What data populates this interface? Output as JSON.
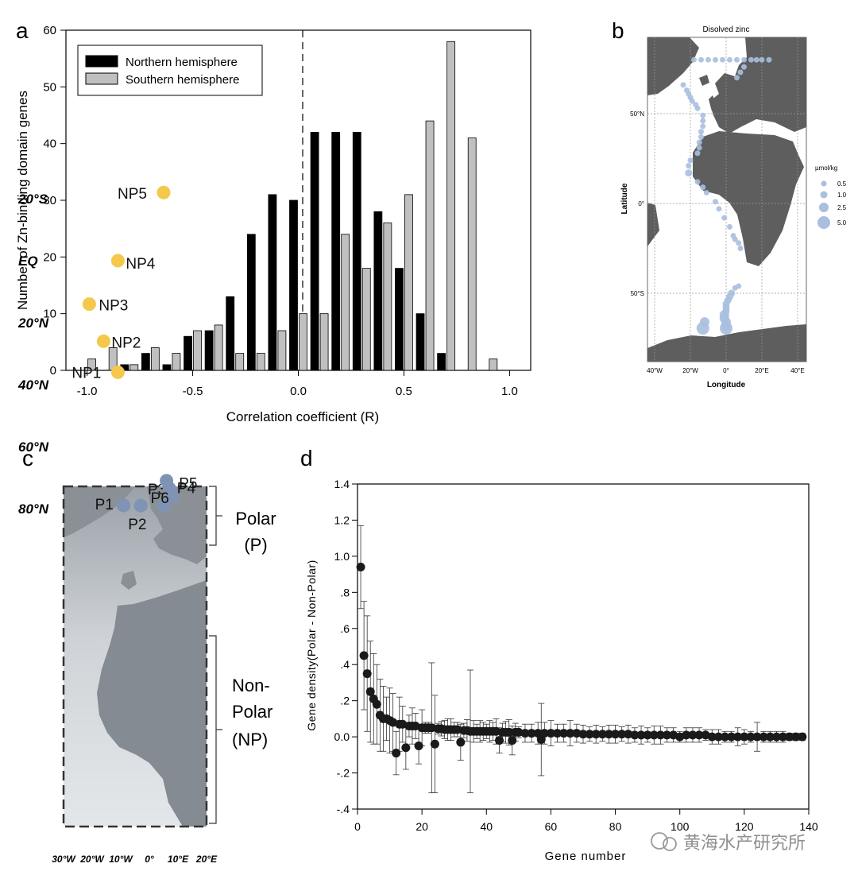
{
  "panel_labels": {
    "a": "a",
    "b": "b",
    "c": "c",
    "d": "d"
  },
  "watermark": "黄海水产研究所",
  "chart_data": [
    {
      "panel": "a",
      "type": "bar",
      "xlabel": "Correlation coefficient (R)",
      "ylabel": "Number of Zn-binding domain genes",
      "xlim": [
        -1.1,
        1.1
      ],
      "ylim": [
        0,
        60
      ],
      "xticks": [
        "-1.0",
        "-0.5",
        "0.0",
        "0.5",
        "1.0"
      ],
      "yticks": [
        "0",
        "10",
        "20",
        "30",
        "40",
        "50",
        "60"
      ],
      "legend_position": "top-left",
      "x": [
        -1.0,
        -0.9,
        -0.8,
        -0.7,
        -0.6,
        -0.5,
        -0.4,
        -0.3,
        -0.2,
        -0.1,
        0.0,
        0.1,
        0.2,
        0.3,
        0.4,
        0.5,
        0.6,
        0.7,
        0.8,
        0.9
      ],
      "series": [
        {
          "name": "Northern hemisphere",
          "color": "#000000",
          "values": [
            0,
            0,
            1,
            3,
            1,
            6,
            7,
            13,
            24,
            31,
            30,
            42,
            42,
            42,
            28,
            18,
            10,
            3,
            0,
            0
          ]
        },
        {
          "name": "Southern hemisphere",
          "color": "#c0c0c0",
          "values": [
            2,
            4,
            1,
            4,
            3,
            7,
            8,
            3,
            3,
            7,
            10,
            10,
            24,
            18,
            26,
            31,
            44,
            58,
            41,
            2
          ]
        }
      ]
    },
    {
      "panel": "b",
      "type": "scatter",
      "title": "Disolved zinc",
      "xlabel": "Longitude",
      "ylabel": "Latitude",
      "xticks": [
        "40°W",
        "20°W",
        "0°",
        "20°E",
        "40°E"
      ],
      "yticks": [
        "50°N",
        "0°",
        "50°S"
      ],
      "legend_title": "µmol/kg",
      "legend_sizes": [
        "0.5",
        "1.0",
        "2.5",
        "5.0"
      ],
      "point_color": "#a9bfdf",
      "points": [
        {
          "lon": -18,
          "lat": 80,
          "v": 0.5
        },
        {
          "lon": -14,
          "lat": 80,
          "v": 0.5
        },
        {
          "lon": -10,
          "lat": 80,
          "v": 0.5
        },
        {
          "lon": -6,
          "lat": 80,
          "v": 0.5
        },
        {
          "lon": -2,
          "lat": 80,
          "v": 0.5
        },
        {
          "lon": 2,
          "lat": 80,
          "v": 0.5
        },
        {
          "lon": 6,
          "lat": 80,
          "v": 0.5
        },
        {
          "lon": 10,
          "lat": 80,
          "v": 0.5
        },
        {
          "lon": 14,
          "lat": 80,
          "v": 0.5
        },
        {
          "lon": 17,
          "lat": 80,
          "v": 0.5
        },
        {
          "lon": 20,
          "lat": 80,
          "v": 0.5
        },
        {
          "lon": 24,
          "lat": 80,
          "v": 0.5
        },
        {
          "lon": 10,
          "lat": 76,
          "v": 0.5
        },
        {
          "lon": 8,
          "lat": 73,
          "v": 0.5
        },
        {
          "lon": 6,
          "lat": 70,
          "v": 0.5
        },
        {
          "lon": -24,
          "lat": 66,
          "v": 0.5
        },
        {
          "lon": -22,
          "lat": 63,
          "v": 0.5
        },
        {
          "lon": -21,
          "lat": 61,
          "v": 0.5
        },
        {
          "lon": -20,
          "lat": 59,
          "v": 0.5
        },
        {
          "lon": -19,
          "lat": 57,
          "v": 0.5
        },
        {
          "lon": -17,
          "lat": 55,
          "v": 0.5
        },
        {
          "lon": -16,
          "lat": 53,
          "v": 0.5
        },
        {
          "lon": -13,
          "lat": 49,
          "v": 0.5
        },
        {
          "lon": -13,
          "lat": 46,
          "v": 0.5
        },
        {
          "lon": -13,
          "lat": 43,
          "v": 0.5
        },
        {
          "lon": -14,
          "lat": 40,
          "v": 0.5
        },
        {
          "lon": -14,
          "lat": 37,
          "v": 0.5
        },
        {
          "lon": -15,
          "lat": 34,
          "v": 0.5
        },
        {
          "lon": -15,
          "lat": 31,
          "v": 0.5
        },
        {
          "lon": -16,
          "lat": 28,
          "v": 0.5
        },
        {
          "lon": -20,
          "lat": 24,
          "v": 0.5
        },
        {
          "lon": -21,
          "lat": 21,
          "v": 0.5
        },
        {
          "lon": -21,
          "lat": 17,
          "v": 1.0
        },
        {
          "lon": -16,
          "lat": 12,
          "v": 0.5
        },
        {
          "lon": -13,
          "lat": 9,
          "v": 0.5
        },
        {
          "lon": -11,
          "lat": 6,
          "v": 0.5
        },
        {
          "lon": -6,
          "lat": 1,
          "v": 0.5
        },
        {
          "lon": -4,
          "lat": -3,
          "v": 0.5
        },
        {
          "lon": -1,
          "lat": -8,
          "v": 0.5
        },
        {
          "lon": 2,
          "lat": -13,
          "v": 0.5
        },
        {
          "lon": 4,
          "lat": -18,
          "v": 0.5
        },
        {
          "lon": 5,
          "lat": -20,
          "v": 0.5
        },
        {
          "lon": 7,
          "lat": -22,
          "v": 0.5
        },
        {
          "lon": 8,
          "lat": -25,
          "v": 0.5
        },
        {
          "lon": 7,
          "lat": -46,
          "v": 0.5
        },
        {
          "lon": 5,
          "lat": -47,
          "v": 0.5
        },
        {
          "lon": 3,
          "lat": -50,
          "v": 1.0
        },
        {
          "lon": 2,
          "lat": -52,
          "v": 1.0
        },
        {
          "lon": 1,
          "lat": -54,
          "v": 1.0
        },
        {
          "lon": 0,
          "lat": -56,
          "v": 1.0
        },
        {
          "lon": 0,
          "lat": -58,
          "v": 1.0
        },
        {
          "lon": 0,
          "lat": -60,
          "v": 1.0
        },
        {
          "lon": -1,
          "lat": -62,
          "v": 2.5
        },
        {
          "lon": -1,
          "lat": -64,
          "v": 2.5
        },
        {
          "lon": 0,
          "lat": -66,
          "v": 2.5
        },
        {
          "lon": 0,
          "lat": -68,
          "v": 2.5
        },
        {
          "lon": 0,
          "lat": -69.5,
          "v": 5.0
        },
        {
          "lon": -12,
          "lat": -66,
          "v": 2.5
        },
        {
          "lon": -13,
          "lat": -69.5,
          "v": 5.0
        }
      ]
    },
    {
      "panel": "c",
      "type": "scatter",
      "xticks": [
        "30°W",
        "20°W",
        "10°W",
        "0°",
        "10°E",
        "20°E"
      ],
      "yticks": [
        "80°N",
        "60°N",
        "40°N",
        "20°N",
        "EQ",
        "20°S"
      ],
      "groups": [
        {
          "name": "Polar",
          "abbr": "(P)",
          "color": "#7f93b4",
          "stations": [
            {
              "label": "P1",
              "lon": -9,
              "lat": 79
            },
            {
              "label": "P2",
              "lon": -3,
              "lat": 79
            },
            {
              "label": "P3",
              "lon": 5,
              "lat": 79
            },
            {
              "label": "P4",
              "lon": 8,
              "lat": 76
            },
            {
              "label": "P5",
              "lon": 7,
              "lat": 73.5
            },
            {
              "label": "P6",
              "lon": 6,
              "lat": 71
            }
          ]
        },
        {
          "name": "Non-",
          "name2": "Polar",
          "abbr": "(NP)",
          "color": "#f5c84c",
          "stations": [
            {
              "label": "NP1",
              "lon": -11,
              "lat": 36
            },
            {
              "label": "NP2",
              "lon": -16,
              "lat": 26
            },
            {
              "label": "NP3",
              "lon": -21,
              "lat": 14
            },
            {
              "label": "NP4",
              "lon": -11,
              "lat": 0
            },
            {
              "label": "NP5",
              "lon": 5,
              "lat": -22
            }
          ]
        }
      ]
    },
    {
      "panel": "d",
      "type": "scatter",
      "xlabel": "Gene number",
      "ylabel": "Gene density(Polar - Non-Polar)",
      "xlim": [
        0,
        140
      ],
      "ylim": [
        -0.4,
        1.4
      ],
      "xticks": [
        "0",
        "20",
        "40",
        "60",
        "80",
        "100",
        "120",
        "140"
      ],
      "yticks": [
        "-.4",
        "-.2",
        "0.0",
        ".2",
        ".4",
        ".6",
        ".8",
        "1.0",
        "1.2",
        "1.4"
      ],
      "series": [
        {
          "color": "#1a1a1a",
          "x": [
            1,
            2,
            3,
            4,
            5,
            6,
            7,
            8,
            9,
            10,
            11,
            12,
            13,
            14,
            15,
            16,
            17,
            18,
            19,
            20,
            21,
            22,
            23,
            24,
            25,
            26,
            27,
            28,
            29,
            30,
            31,
            32,
            33,
            34,
            35,
            36,
            37,
            38,
            39,
            40,
            41,
            42,
            43,
            44,
            45,
            46,
            47,
            48,
            49,
            50,
            52,
            54,
            56,
            57,
            58,
            60,
            62,
            64,
            66,
            68,
            70,
            72,
            74,
            76,
            78,
            80,
            82,
            84,
            86,
            88,
            90,
            92,
            94,
            96,
            98,
            100,
            102,
            104,
            106,
            108,
            110,
            112,
            114,
            116,
            118,
            120,
            122,
            124,
            126,
            128,
            130,
            132,
            134,
            136,
            138
          ],
          "y": [
            0.94,
            0.45,
            0.35,
            0.25,
            0.21,
            0.18,
            0.12,
            0.1,
            0.1,
            0.09,
            0.08,
            -0.09,
            0.07,
            0.07,
            -0.06,
            0.06,
            0.06,
            0.06,
            -0.05,
            0.05,
            0.05,
            0.05,
            0.05,
            -0.04,
            0.045,
            0.045,
            0.04,
            0.04,
            0.04,
            0.04,
            0.04,
            -0.03,
            0.035,
            0.035,
            0.03,
            0.03,
            0.03,
            0.03,
            0.03,
            0.03,
            0.03,
            0.03,
            0.03,
            -0.02,
            0.025,
            0.025,
            0.025,
            -0.02,
            0.025,
            0.025,
            0.02,
            0.02,
            0.02,
            -0.015,
            0.02,
            0.02,
            0.02,
            0.02,
            0.02,
            0.02,
            0.015,
            0.015,
            0.015,
            0.015,
            0.015,
            0.015,
            0.015,
            0.015,
            0.01,
            0.01,
            0.01,
            0.01,
            0.01,
            0.01,
            0.01,
            0.0,
            0.01,
            0.01,
            0.01,
            0.01,
            0.0,
            0.0,
            0.0,
            0.0,
            0.0,
            0.0,
            0.0,
            0.0,
            0.0,
            0.0,
            0.0,
            0.0,
            0.0,
            0.0,
            0.0
          ],
          "err": [
            0.23,
            0.3,
            0.32,
            0.28,
            0.25,
            0.22,
            0.2,
            0.18,
            0.12,
            0.18,
            0.16,
            0.12,
            0.15,
            0.1,
            0.12,
            0.06,
            0.1,
            0.07,
            0.1,
            0.1,
            0.03,
            0.03,
            0.36,
            0.27,
            0.03,
            0.04,
            0.05,
            0.06,
            0.06,
            0.04,
            0.04,
            0.1,
            0.04,
            0.06,
            0.34,
            0.06,
            0.04,
            0.06,
            0.05,
            0.04,
            0.06,
            0.05,
            0.07,
            0.07,
            0.05,
            0.06,
            0.07,
            0.08,
            0.05,
            0.03,
            0.05,
            0.05,
            0.06,
            0.2,
            0.06,
            0.07,
            0.05,
            0.05,
            0.07,
            0.05,
            0.05,
            0.04,
            0.05,
            0.04,
            0.05,
            0.05,
            0.04,
            0.05,
            0.04,
            0.05,
            0.04,
            0.05,
            0.05,
            0.04,
            0.04,
            0.03,
            0.04,
            0.04,
            0.04,
            0.03,
            0.04,
            0.04,
            0.03,
            0.03,
            0.05,
            0.04,
            0.03,
            0.08,
            0.03,
            0.03,
            0.03,
            0.03,
            0.02,
            0.02,
            0.02
          ]
        }
      ]
    }
  ]
}
